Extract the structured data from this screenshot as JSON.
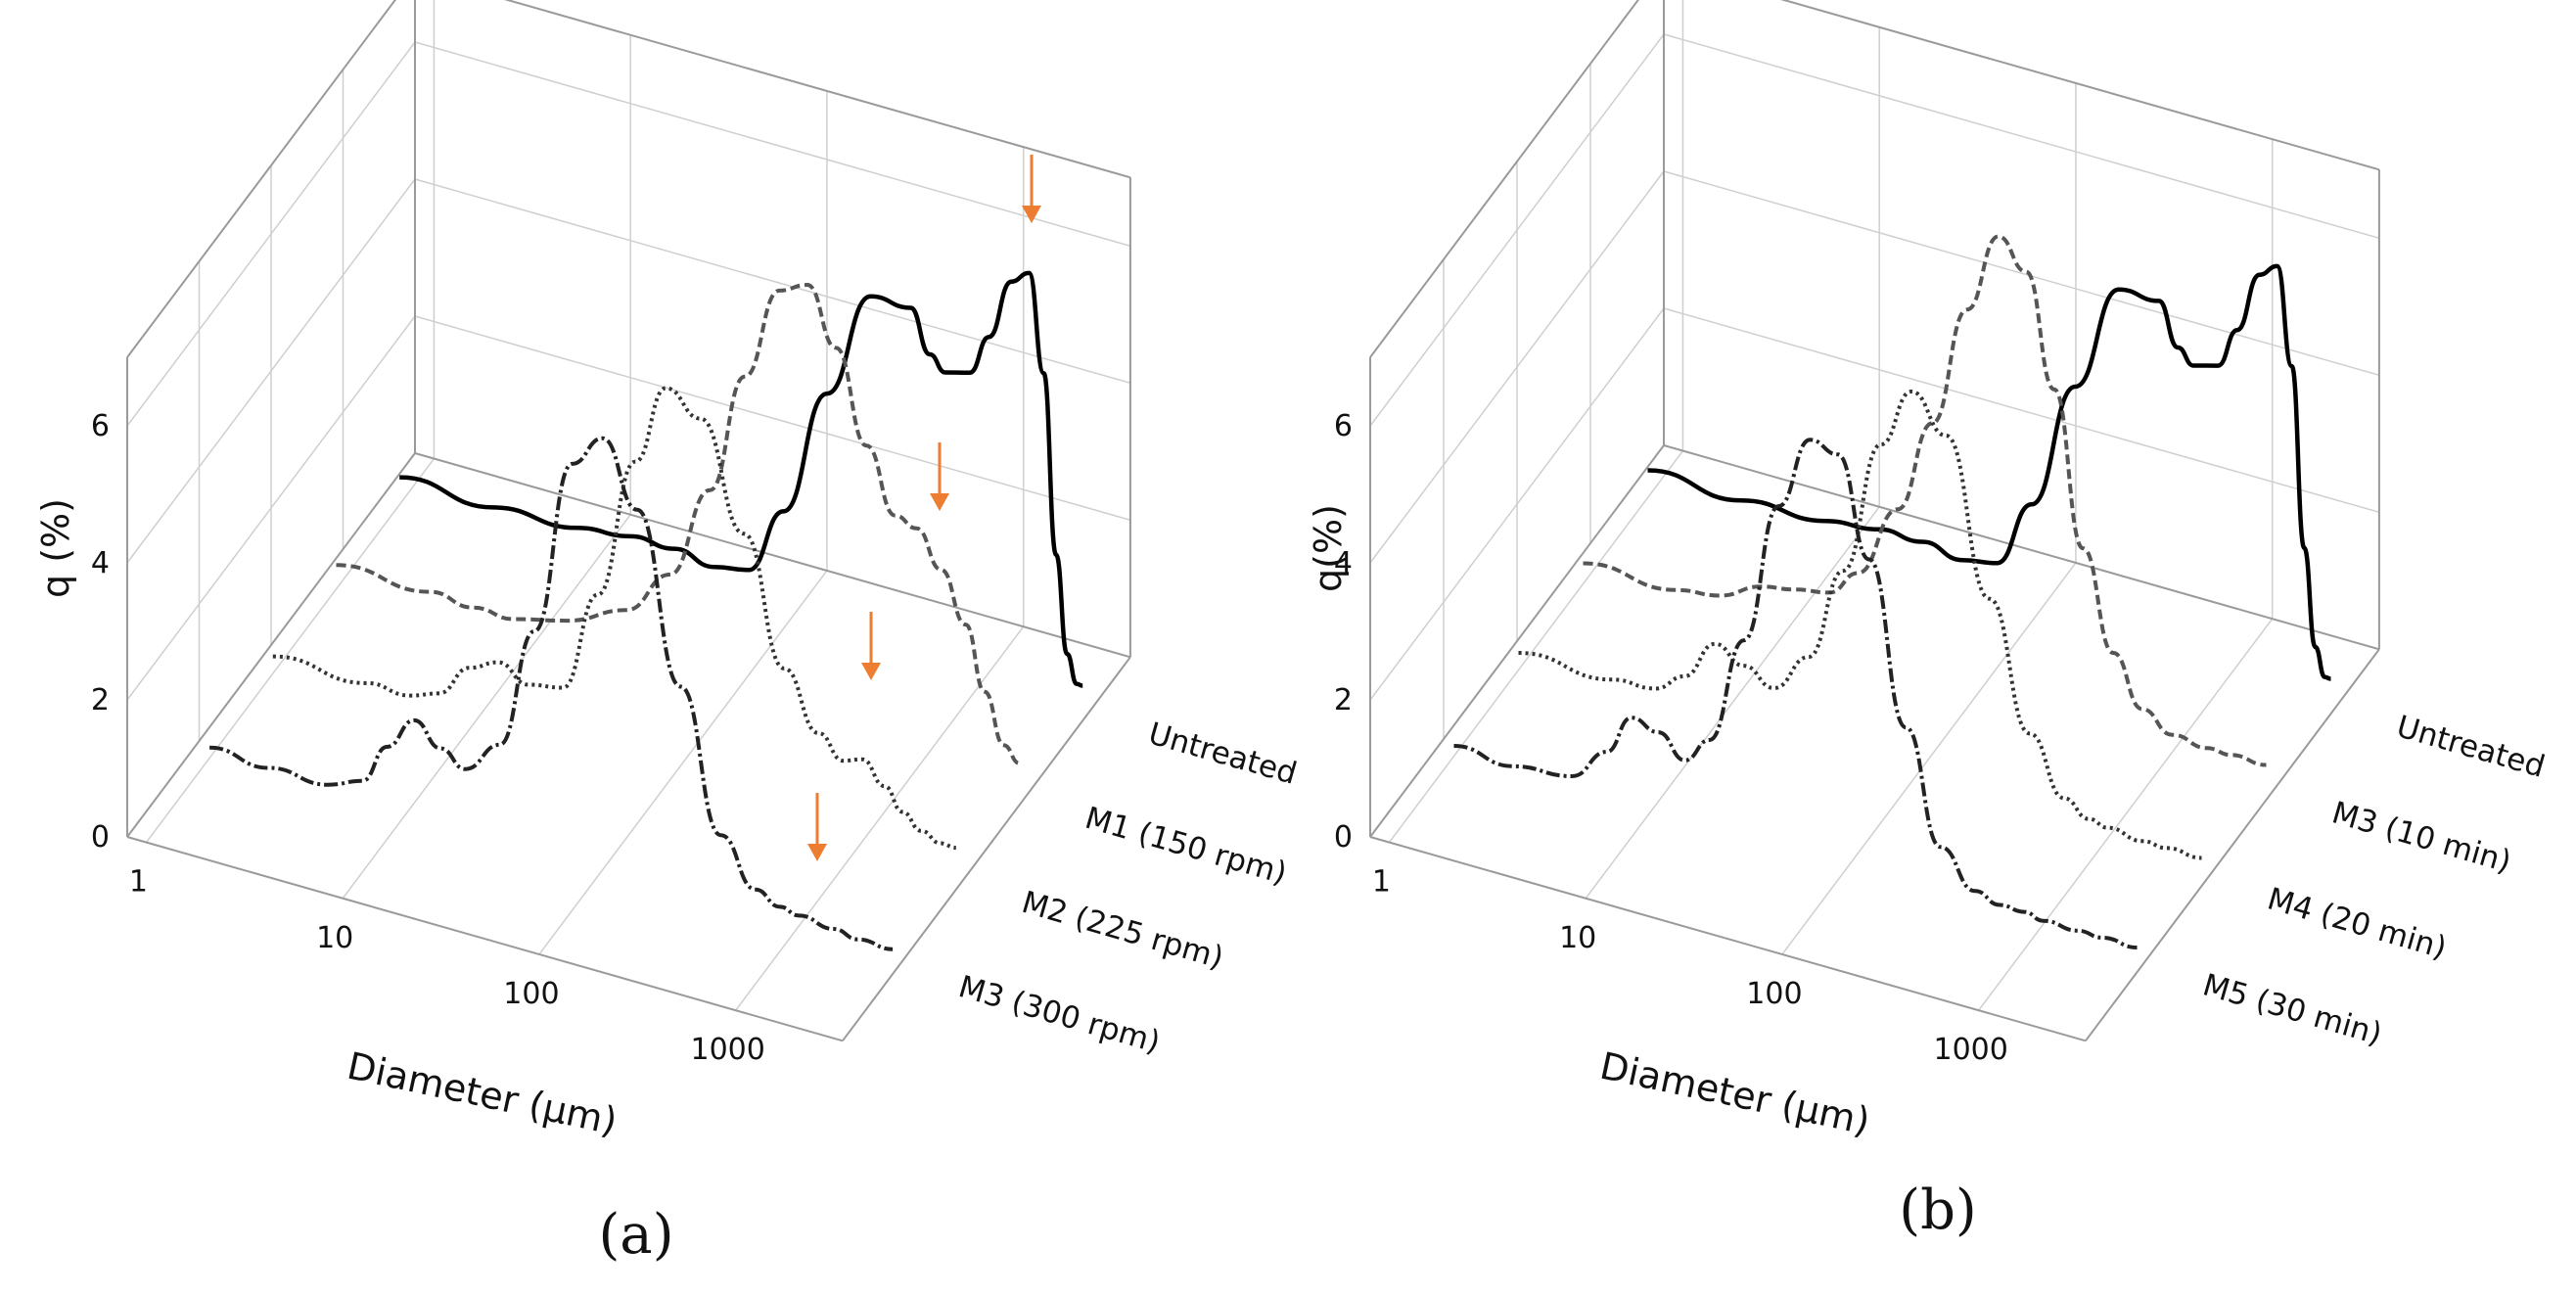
{
  "figure": {
    "panel_labels": [
      "(a)",
      "(b)"
    ]
  },
  "chart_data": [
    {
      "type": "line",
      "panel": "(a)",
      "title": "",
      "xlabel": "Diameter (μm)",
      "ylabel": "q (%)",
      "xscale": "log",
      "xlim": [
        0.8,
        3500
      ],
      "ylim": [
        0,
        7
      ],
      "x_ticks": [
        "1",
        "10",
        "100",
        "1000"
      ],
      "y_ticks": [
        "0",
        "2",
        "4",
        "6"
      ],
      "depth_labels": [
        "Untreated",
        "M1 (150 rpm)",
        "M2 (225 rpm)",
        "M3 (300 rpm)"
      ],
      "arrow_color": "#ed7d31",
      "series": [
        {
          "name": "Untreated",
          "style": "solid",
          "color": "#000000",
          "arrow": true,
          "x": [
            1,
            3,
            8,
            15,
            25,
            40,
            60,
            90,
            150,
            250,
            400,
            500,
            600,
            800,
            1000,
            1300,
            1600,
            1900,
            2200,
            2500,
            2800,
            3000
          ],
          "y": [
            0.4,
            0.35,
            0.4,
            0.5,
            0.5,
            0.4,
            0.5,
            1.5,
            3.4,
            5.0,
            5.0,
            4.4,
            4.2,
            4.3,
            4.9,
            5.8,
            6.0,
            4.6,
            2.0,
            0.6,
            0.2,
            0.2
          ]
        },
        {
          "name": "M1 (150 rpm)",
          "style": "dashed",
          "color": "#555555",
          "arrow": true,
          "x": [
            1,
            3,
            5,
            8,
            15,
            30,
            50,
            80,
            120,
            180,
            250,
            350,
            500,
            700,
            900,
            1200,
            1600,
            2000,
            2500,
            3000
          ],
          "y": [
            0.35,
            0.35,
            0.3,
            0.3,
            0.5,
            0.9,
            1.6,
            3.0,
            4.8,
            6.2,
            6.4,
            5.6,
            4.3,
            3.4,
            3.3,
            2.8,
            2.1,
            1.2,
            0.5,
            0.3
          ]
        },
        {
          "name": "M2 (225 rpm)",
          "style": "dotted",
          "color": "#333333",
          "arrow": true,
          "x": [
            1,
            3,
            5,
            7,
            10,
            14,
            20,
            30,
            45,
            70,
            100,
            150,
            250,
            400,
            600,
            800,
            1000,
            1300,
            1600,
            2000,
            2500,
            3000
          ],
          "y": [
            0.25,
            0.25,
            0.25,
            0.4,
            0.9,
            1.1,
            0.9,
            1.0,
            2.5,
            4.6,
            5.8,
            5.5,
            4.0,
            2.2,
            1.4,
            1.1,
            1.2,
            0.9,
            0.6,
            0.4,
            0.3,
            0.3
          ]
        },
        {
          "name": "M3 (300 rpm)",
          "style": "dash-dot",
          "color": "#222222",
          "arrow": true,
          "x": [
            1,
            2,
            4,
            6,
            8,
            11,
            15,
            20,
            30,
            45,
            70,
            100,
            150,
            250,
            400,
            600,
            800,
            1000,
            1500,
            2000,
            3000
          ],
          "y": [
            0.15,
            0.1,
            0.1,
            0.3,
            0.9,
            1.4,
            1.1,
            0.9,
            1.4,
            3.2,
            5.8,
            6.3,
            5.4,
            3.0,
            1.0,
            0.35,
            0.2,
            0.15,
            0.1,
            0.05,
            0.05
          ]
        }
      ]
    },
    {
      "type": "line",
      "panel": "(b)",
      "title": "",
      "xlabel": "Diameter (μm)",
      "ylabel": "q(%)",
      "xscale": "log",
      "xlim": [
        0.8,
        3500
      ],
      "ylim": [
        0,
        7
      ],
      "x_ticks": [
        "1",
        "10",
        "100",
        "1000"
      ],
      "y_ticks": [
        "0",
        "2",
        "4",
        "6"
      ],
      "depth_labels": [
        "Untreated",
        "M3 (10 min)",
        "M4 (20 min)",
        "M5 (30 min)"
      ],
      "arrow_color": "#ed7d31",
      "series": [
        {
          "name": "Untreated",
          "style": "solid",
          "color": "#000000",
          "arrow": false,
          "x": [
            1,
            3,
            8,
            15,
            25,
            40,
            60,
            90,
            150,
            250,
            400,
            500,
            600,
            800,
            1000,
            1300,
            1600,
            1900,
            2200,
            2500,
            2800,
            3000
          ],
          "y": [
            0.4,
            0.35,
            0.4,
            0.5,
            0.5,
            0.4,
            0.5,
            1.5,
            3.4,
            5.0,
            5.0,
            4.4,
            4.2,
            4.3,
            4.9,
            5.8,
            6.0,
            4.6,
            2.0,
            0.6,
            0.2,
            0.2
          ]
        },
        {
          "name": "M3 (10 min)",
          "style": "dashed",
          "color": "#555555",
          "arrow": false,
          "x": [
            1,
            3,
            5,
            8,
            12,
            18,
            25,
            40,
            60,
            90,
            130,
            180,
            250,
            350,
            500,
            700,
            1000,
            1500,
            2000,
            3000
          ],
          "y": [
            0.3,
            0.3,
            0.4,
            0.7,
            0.8,
            0.9,
            1.3,
            2.4,
            3.8,
            5.6,
            6.8,
            6.4,
            4.8,
            2.6,
            1.2,
            0.5,
            0.25,
            0.2,
            0.2,
            0.2
          ]
        },
        {
          "name": "M4 (20 min)",
          "style": "dotted",
          "color": "#333333",
          "arrow": false,
          "x": [
            1,
            3,
            5,
            7,
            10,
            14,
            20,
            30,
            45,
            70,
            100,
            150,
            250,
            400,
            600,
            800,
            1000,
            1500,
            2000,
            3000
          ],
          "y": [
            0.25,
            0.25,
            0.3,
            0.6,
            1.2,
            1.0,
            0.8,
            1.4,
            2.8,
            4.8,
            5.7,
            5.2,
            3.0,
            1.2,
            0.4,
            0.2,
            0.15,
            0.1,
            0.1,
            0.1
          ]
        },
        {
          "name": "M5 (30 min)",
          "style": "dash-dot",
          "color": "#222222",
          "arrow": false,
          "x": [
            1,
            2,
            4,
            6,
            8,
            11,
            15,
            20,
            30,
            45,
            65,
            90,
            130,
            200,
            300,
            450,
            600,
            800,
            1000,
            1500,
            2000,
            3000
          ],
          "y": [
            0.15,
            0.1,
            0.2,
            0.7,
            1.3,
            1.2,
            0.9,
            1.3,
            2.9,
            5.0,
            6.1,
            6.0,
            4.6,
            2.3,
            0.7,
            0.2,
            0.1,
            0.1,
            0.05,
            0.05,
            0.05,
            0.05
          ]
        }
      ]
    }
  ]
}
